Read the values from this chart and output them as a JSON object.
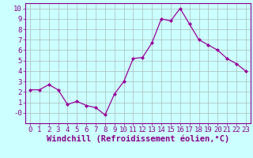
{
  "x": [
    0,
    1,
    2,
    3,
    4,
    5,
    6,
    7,
    8,
    9,
    10,
    11,
    12,
    13,
    14,
    15,
    16,
    17,
    18,
    19,
    20,
    21,
    22,
    23
  ],
  "y": [
    2.2,
    2.2,
    2.7,
    2.2,
    0.8,
    1.1,
    0.7,
    0.5,
    -0.2,
    1.8,
    3.0,
    5.2,
    5.3,
    6.7,
    9.0,
    8.8,
    10.0,
    8.5,
    7.0,
    6.5,
    6.0,
    5.2,
    4.7,
    4.0
  ],
  "line_color": "#990099",
  "marker": "D",
  "marker_size": 2.0,
  "bg_color": "#ccffff",
  "grid_color": "#aabbbb",
  "axis_color": "#880088",
  "xlabel": "Windchill (Refroidissement éolien,°C)",
  "ylabel": "",
  "title": "",
  "xlim": [
    -0.5,
    23.5
  ],
  "ylim": [
    -1.0,
    10.5
  ],
  "yticks": [
    0,
    1,
    2,
    3,
    4,
    5,
    6,
    7,
    8,
    9,
    10
  ],
  "xticks": [
    0,
    1,
    2,
    3,
    4,
    5,
    6,
    7,
    8,
    9,
    10,
    11,
    12,
    13,
    14,
    15,
    16,
    17,
    18,
    19,
    20,
    21,
    22,
    23
  ],
  "tick_font_size": 6.5,
  "label_font_size": 7.5
}
